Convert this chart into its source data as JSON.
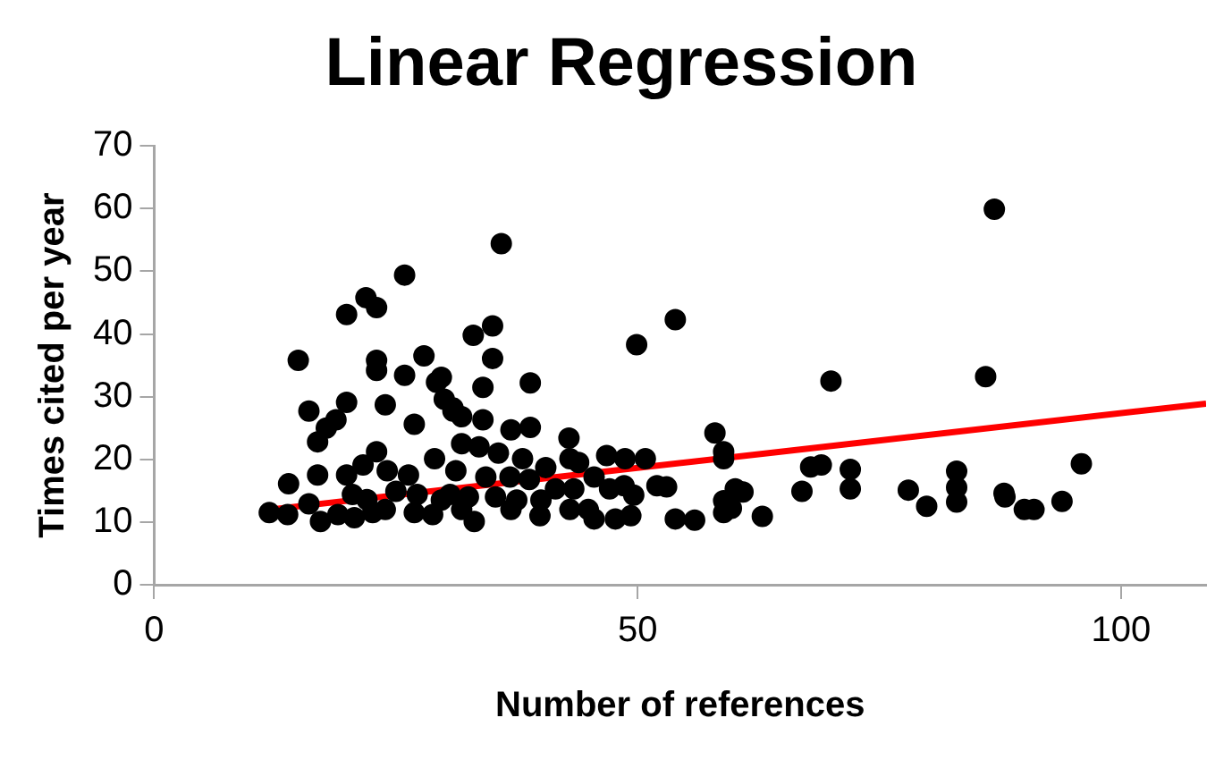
{
  "chart_data": {
    "type": "scatter",
    "title": "Linear Regression",
    "xlabel": "Number of references",
    "ylabel": "Times cited per year",
    "xlim": [
      0,
      108.8
    ],
    "ylim": [
      0,
      70
    ],
    "xticks": [
      0,
      50,
      100
    ],
    "yticks": [
      0,
      10,
      20,
      30,
      40,
      50,
      60,
      70
    ],
    "grid": false,
    "legend": false,
    "marker": "circle",
    "series": [
      {
        "color": "#000000",
        "x": [
          86.9,
          53.9,
          70,
          86,
          58,
          58.9,
          58.9,
          67.9,
          69,
          72,
          72,
          67,
          78,
          79.9,
          83,
          83,
          83,
          87.9,
          88,
          90,
          91,
          93.9,
          95.9,
          53,
          53.9,
          55.9,
          58.9,
          58.9,
          60.1,
          60.9,
          59.7,
          62.9,
          35.9,
          49.9,
          33,
          35,
          35,
          34,
          38.9,
          30.9,
          31.8,
          34,
          36.9,
          38.9,
          42.9,
          31.8,
          33.6,
          35.6,
          38.1,
          40.5,
          43,
          43.9,
          46.8,
          48.7,
          50.8,
          45.5,
          48.6,
          52,
          31.2,
          34.3,
          36.8,
          38.8,
          41.5,
          43.4,
          47.1,
          49.6,
          30.6,
          32.5,
          35.3,
          37.5,
          40,
          31.8,
          33.1,
          36.9,
          39.9,
          43,
          44.9,
          45.5,
          47.7,
          49.3,
          25.9,
          21.9,
          23,
          19.9,
          14.9,
          23,
          23,
          27.9,
          25.9,
          29.2,
          29.7,
          19.9,
          23.9,
          16,
          18.8,
          17.8,
          16.9,
          30,
          30.9,
          26.9,
          23,
          13.9,
          16.9,
          19.9,
          21.6,
          24.1,
          26.3,
          29,
          11.9,
          13.8,
          16,
          17.2,
          19,
          20.7,
          22.6,
          23.9,
          25,
          26.9,
          27.2,
          28.8,
          29.7,
          22,
          20.5
        ],
        "values": [
          59.9,
          42.3,
          32.5,
          33.2,
          24.2,
          21.2,
          20.1,
          18.8,
          19.1,
          18.4,
          15.3,
          14.9,
          15.1,
          12.5,
          18.1,
          15.5,
          13.2,
          14.6,
          14,
          12,
          12,
          13.3,
          19.3,
          15.6,
          10.5,
          10.3,
          13.4,
          11.5,
          15.3,
          14.8,
          12.2,
          10.9,
          54.4,
          38.3,
          39.8,
          41.3,
          36.1,
          31.5,
          32.2,
          28.2,
          26.8,
          26.3,
          24.7,
          25.1,
          23.4,
          22.5,
          22,
          21,
          20.1,
          18.7,
          20.1,
          19.5,
          20.6,
          20.1,
          20.1,
          17.2,
          15.8,
          15.8,
          18.2,
          17.2,
          17.2,
          16.8,
          15.3,
          15.3,
          15.3,
          14.3,
          14.4,
          14,
          14,
          13.5,
          13.5,
          12,
          10.1,
          12,
          11,
          12,
          12,
          10.5,
          10.5,
          11,
          49.4,
          45.8,
          44.2,
          43.1,
          35.8,
          35.8,
          34.2,
          36.5,
          33.4,
          32.3,
          33.1,
          29.1,
          28.7,
          27.7,
          26.3,
          25,
          22.8,
          29.6,
          27.7,
          25.6,
          21.2,
          16.1,
          17.5,
          17.5,
          19.1,
          18.2,
          17.5,
          20.1,
          11.5,
          11.2,
          12.9,
          10.1,
          11.2,
          10.7,
          11.5,
          12,
          14.9,
          11.5,
          14.4,
          11.2,
          13.5,
          13.6,
          14.4
        ]
      },
      {
        "type": "line",
        "color": "#ff0000",
        "line_style": "solid",
        "marker": "none",
        "x": [
          12,
          108.8
        ],
        "values": [
          12,
          28.9
        ]
      }
    ]
  }
}
